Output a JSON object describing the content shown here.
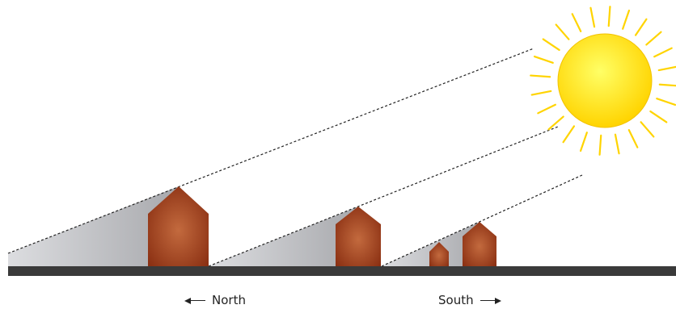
{
  "labels": {
    "north": "North",
    "south": "South"
  },
  "icons": {
    "sun": "sun-icon",
    "house": "house-icon",
    "left_arrow": "left-arrow-icon",
    "right_arrow": "right-arrow-icon"
  },
  "colors": {
    "sun_core": "#ffe600",
    "sun_rays": "#ffd400",
    "house_light": "#c36a3e",
    "house_dark": "#8a2f12",
    "shadow": "#b7b8bb",
    "ground": "#3a3a3a",
    "sun_line": "#222222"
  }
}
